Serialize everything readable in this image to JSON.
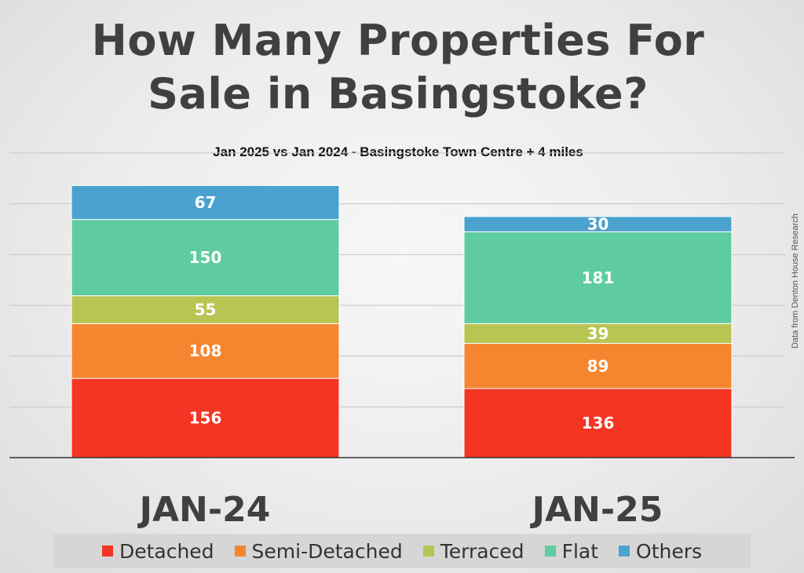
{
  "title_lines": [
    "How Many Properties For",
    "Sale in Basingstoke?"
  ],
  "subtitle": "Jan 2025 vs Jan 2024 - Basingstoke Town Centre + 4 miles",
  "source_note": "Data from Denton House Research",
  "chart_data": {
    "type": "bar",
    "stacked": true,
    "title": "How Many Properties For Sale in Basingstoke?",
    "subtitle": "Jan 2025 vs Jan 2024 - Basingstoke Town Centre + 4 miles",
    "categories": [
      "JAN-24",
      "JAN-25"
    ],
    "series": [
      {
        "name": "Detached",
        "values": [
          156,
          136
        ],
        "color": "#f43523"
      },
      {
        "name": "Semi-Detached",
        "values": [
          108,
          89
        ],
        "color": "#f5862f"
      },
      {
        "name": "Terraced",
        "values": [
          55,
          39
        ],
        "color": "#b8c552"
      },
      {
        "name": "Flat",
        "values": [
          150,
          181
        ],
        "color": "#5ecca0"
      },
      {
        "name": "Others",
        "values": [
          67,
          30
        ],
        "color": "#4ca2cf"
      }
    ],
    "ylim": [
      0,
      600
    ],
    "grid": true,
    "legend_position": "bottom"
  }
}
